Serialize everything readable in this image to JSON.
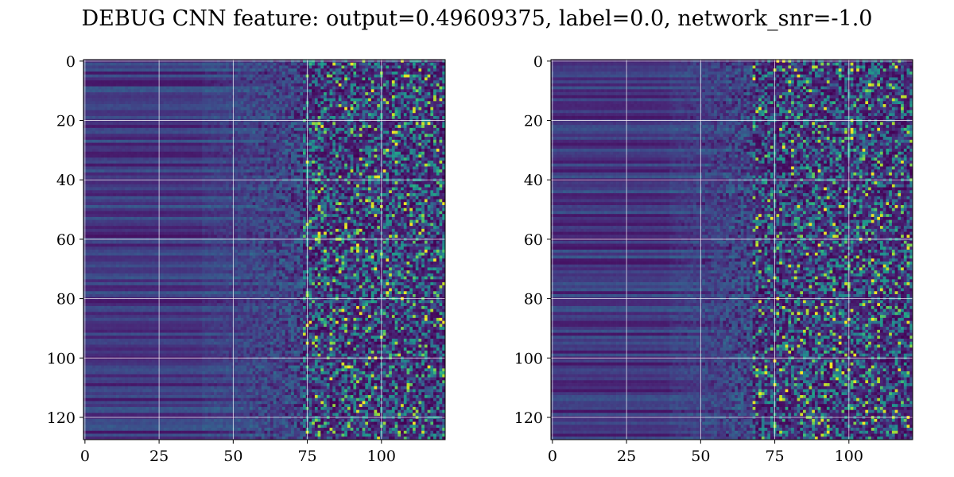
{
  "figure": {
    "title": "DEBUG CNN feature: output=0.49609375, label=0.0, network_snr=-1.0"
  },
  "chart_data": [
    {
      "type": "heatmap",
      "title": "",
      "xlabel": "",
      "ylabel": "",
      "shape": [
        128,
        122
      ],
      "colormap": "viridis",
      "xlim": [
        -0.5,
        121.5
      ],
      "ylim": [
        127.5,
        -0.5
      ],
      "xticks": [
        0,
        25,
        50,
        75,
        100
      ],
      "yticks": [
        0,
        20,
        40,
        60,
        80,
        100,
        120
      ],
      "grid": true,
      "description": "noise-like feature map; dark-uniform horizontal bands on the left (x<60), speckled bright values on the right (x>75)"
    },
    {
      "type": "heatmap",
      "title": "",
      "xlabel": "",
      "ylabel": "",
      "shape": [
        128,
        122
      ],
      "colormap": "viridis",
      "xlim": [
        -0.5,
        121.5
      ],
      "ylim": [
        127.5,
        -0.5
      ],
      "xticks": [
        0,
        25,
        50,
        75,
        100
      ],
      "yticks": [
        0,
        20,
        40,
        60,
        80,
        100,
        120
      ],
      "grid": true,
      "description": "noise-like feature map; dark-uniform horizontal bands on the left (x<60), speckled bright values on the right (x>70)"
    }
  ],
  "colors": {
    "grid": "#ffffff",
    "frame": "#000000",
    "viridis": [
      "#440154",
      "#482878",
      "#3e4989",
      "#31688e",
      "#26828e",
      "#1f9e89",
      "#35b779",
      "#6ece58",
      "#b5de2b",
      "#fde725"
    ]
  }
}
